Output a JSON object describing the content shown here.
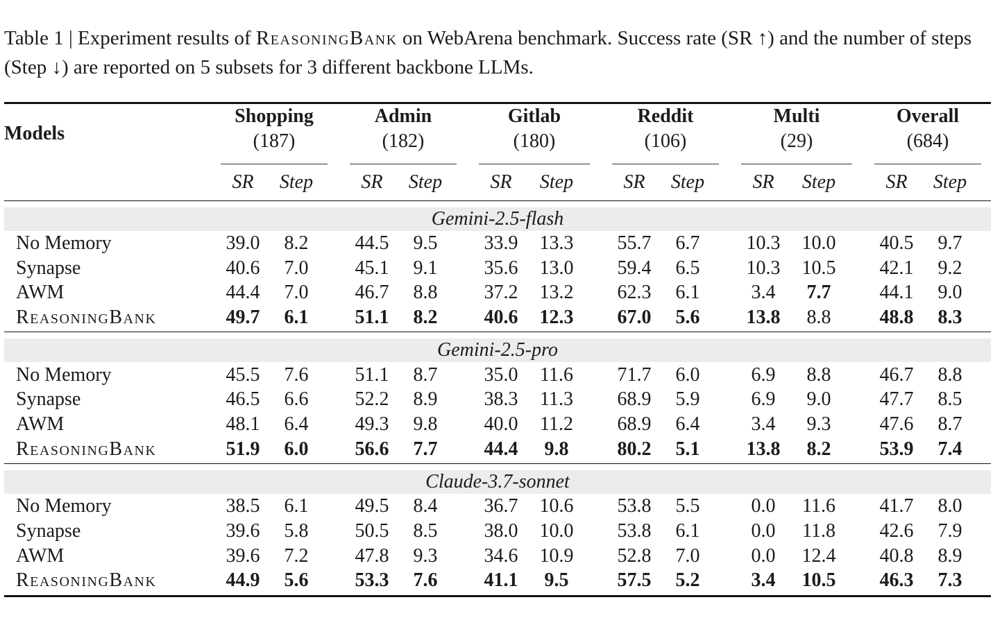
{
  "caption": {
    "prefix": "Table 1 | Experiment results of ",
    "method": "ReasoningBank",
    "suffix": " on WebArena benchmark. Success rate (SR ↑) and the number of steps (Step ↓) are reported on 5 subsets for 3 different backbone LLMs."
  },
  "header": {
    "models": "Models",
    "groups": [
      {
        "name": "Shopping",
        "count": "(187)"
      },
      {
        "name": "Admin",
        "count": "(182)"
      },
      {
        "name": "Gitlab",
        "count": "(180)"
      },
      {
        "name": "Reddit",
        "count": "(106)"
      },
      {
        "name": "Multi",
        "count": "(29)"
      },
      {
        "name": "Overall",
        "count": "(684)"
      }
    ],
    "sr": "SR",
    "step": "Step"
  },
  "blocks": [
    {
      "model": "Gemini-2.5-flash",
      "rows": [
        {
          "name": "No Memory",
          "values": [
            "39.0",
            "8.2",
            "44.5",
            "9.5",
            "33.9",
            "13.3",
            "55.7",
            "6.7",
            "10.3",
            "10.0",
            "40.5",
            "9.7"
          ],
          "bold": []
        },
        {
          "name": "Synapse",
          "values": [
            "40.6",
            "7.0",
            "45.1",
            "9.1",
            "35.6",
            "13.0",
            "59.4",
            "6.5",
            "10.3",
            "10.5",
            "42.1",
            "9.2"
          ],
          "bold": []
        },
        {
          "name": "AWM",
          "values": [
            "44.4",
            "7.0",
            "46.7",
            "8.8",
            "37.2",
            "13.2",
            "62.3",
            "6.1",
            "3.4",
            "7.7",
            "44.1",
            "9.0"
          ],
          "bold": [
            9
          ]
        },
        {
          "name": "ReasoningBank",
          "values": [
            "49.7",
            "6.1",
            "51.1",
            "8.2",
            "40.6",
            "12.3",
            "67.0",
            "5.6",
            "13.8",
            "8.8",
            "48.8",
            "8.3"
          ],
          "bold": [
            0,
            1,
            2,
            3,
            4,
            5,
            6,
            7,
            8,
            10,
            11
          ]
        }
      ]
    },
    {
      "model": "Gemini-2.5-pro",
      "rows": [
        {
          "name": "No Memory",
          "values": [
            "45.5",
            "7.6",
            "51.1",
            "8.7",
            "35.0",
            "11.6",
            "71.7",
            "6.0",
            "6.9",
            "8.8",
            "46.7",
            "8.8"
          ],
          "bold": []
        },
        {
          "name": "Synapse",
          "values": [
            "46.5",
            "6.6",
            "52.2",
            "8.9",
            "38.3",
            "11.3",
            "68.9",
            "5.9",
            "6.9",
            "9.0",
            "47.7",
            "8.5"
          ],
          "bold": []
        },
        {
          "name": "AWM",
          "values": [
            "48.1",
            "6.4",
            "49.3",
            "9.8",
            "40.0",
            "11.2",
            "68.9",
            "6.4",
            "3.4",
            "9.3",
            "47.6",
            "8.7"
          ],
          "bold": []
        },
        {
          "name": "ReasoningBank",
          "values": [
            "51.9",
            "6.0",
            "56.6",
            "7.7",
            "44.4",
            "9.8",
            "80.2",
            "5.1",
            "13.8",
            "8.2",
            "53.9",
            "7.4"
          ],
          "bold": [
            0,
            1,
            2,
            3,
            4,
            5,
            6,
            7,
            8,
            9,
            10,
            11
          ]
        }
      ]
    },
    {
      "model": "Claude-3.7-sonnet",
      "rows": [
        {
          "name": "No Memory",
          "values": [
            "38.5",
            "6.1",
            "49.5",
            "8.4",
            "36.7",
            "10.6",
            "53.8",
            "5.5",
            "0.0",
            "11.6",
            "41.7",
            "8.0"
          ],
          "bold": []
        },
        {
          "name": "Synapse",
          "values": [
            "39.6",
            "5.8",
            "50.5",
            "8.5",
            "38.0",
            "10.0",
            "53.8",
            "6.1",
            "0.0",
            "11.8",
            "42.6",
            "7.9"
          ],
          "bold": []
        },
        {
          "name": "AWM",
          "values": [
            "39.6",
            "7.2",
            "47.8",
            "9.3",
            "34.6",
            "10.9",
            "52.8",
            "7.0",
            "0.0",
            "12.4",
            "40.8",
            "8.9"
          ],
          "bold": []
        },
        {
          "name": "ReasoningBank",
          "values": [
            "44.9",
            "5.6",
            "53.3",
            "7.6",
            "41.1",
            "9.5",
            "57.5",
            "5.2",
            "3.4",
            "10.5",
            "46.3",
            "7.3"
          ],
          "bold": [
            0,
            1,
            2,
            3,
            4,
            5,
            6,
            7,
            8,
            9,
            10,
            11
          ]
        }
      ]
    }
  ]
}
